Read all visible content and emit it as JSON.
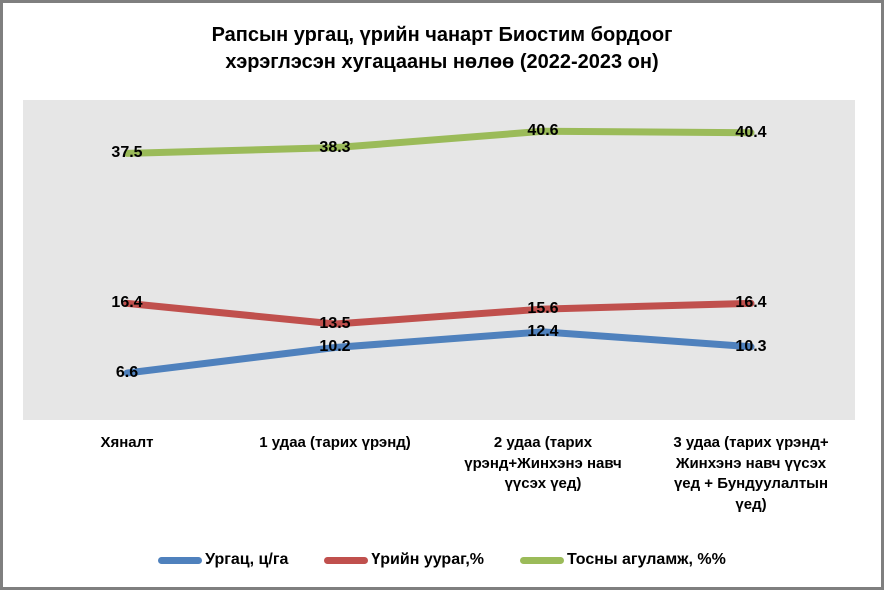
{
  "title": {
    "line1": "Рапсын ургац, үрийн чанарт Биостим бордоог",
    "line2": "хэрэглэсэн хугацааны нөлөө (2022-2023 он)"
  },
  "colors": {
    "plot_background": "#e6e6e6",
    "frame_border": "#7f7f7f",
    "text": "#000000",
    "series_blue": "#4f81bd",
    "series_red": "#c0504d",
    "series_green": "#9bbb59"
  },
  "chart_data": {
    "type": "line",
    "title": "Рапсын ургац, үрийн чанарт Биостим бордоог хэрэглэсэн хугацааны нөлөө (2022-2023 он)",
    "categories": [
      "Хяналт",
      "1 удаа (тарих үрэнд)",
      "2 удаа (тарих үрэнд+Жинхэнэ навч үүсэх үед)",
      "3 удаа (тарих үрэнд+ Жинхэнэ навч үүсэх үед + Бундуулалтын үед)"
    ],
    "series": [
      {
        "name": "Ургац, ц/га",
        "color": "#4f81bd",
        "values": [
          6.6,
          10.2,
          12.4,
          10.3
        ]
      },
      {
        "name": "Үрийн уураг,%",
        "color": "#c0504d",
        "values": [
          16.4,
          13.5,
          15.6,
          16.4
        ]
      },
      {
        "name": "Тосны агуламж, %%",
        "color": "#9bbb59",
        "values": [
          37.5,
          38.3,
          40.6,
          40.4
        ]
      }
    ],
    "xlabel": "",
    "ylabel": "",
    "ylim": [
      0,
      45
    ],
    "grid": false,
    "y_axis_visible": false,
    "legend_position": "bottom",
    "data_labels": "center"
  }
}
